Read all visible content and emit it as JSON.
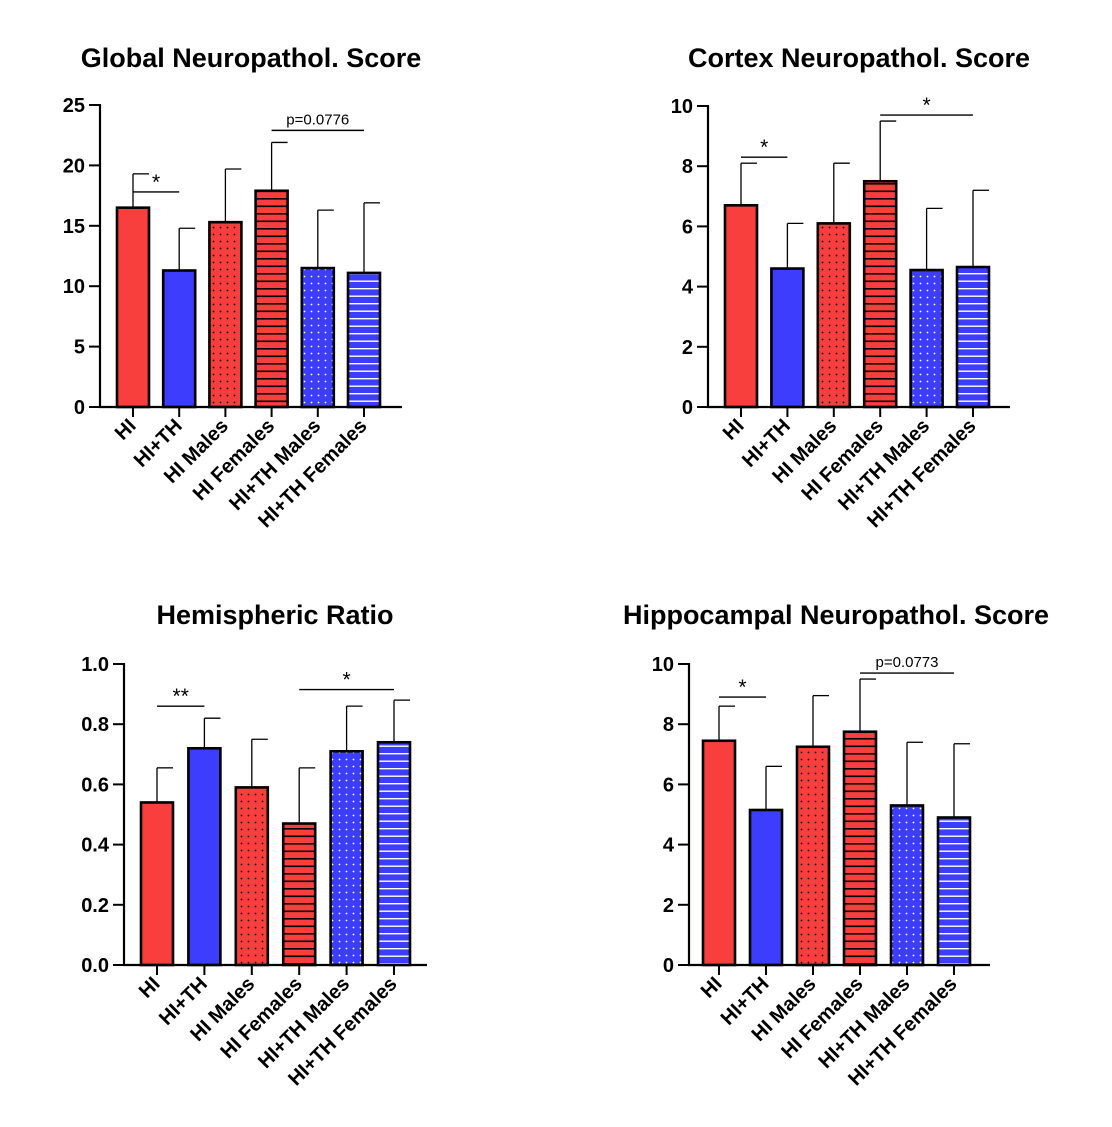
{
  "chart_data": [
    {
      "type": "bar",
      "title": "Global Neuropathol. Score",
      "categories": [
        "HI",
        "HI+TH",
        "HI Males",
        "HI Females",
        "HI+TH Males",
        "HI+TH Females"
      ],
      "values": [
        16.5,
        11.3,
        15.3,
        17.9,
        11.5,
        11.1
      ],
      "error_upper": [
        19.3,
        14.8,
        19.7,
        21.9,
        16.3,
        16.9
      ],
      "patterns": [
        "solid",
        "solid",
        "dots",
        "hlines",
        "dots",
        "hlines"
      ],
      "ylim": [
        0,
        25
      ],
      "yticks": [
        0,
        5,
        10,
        15,
        20,
        25
      ],
      "ytick_labels": [
        "0",
        "5",
        "10",
        "15",
        "20",
        "25"
      ],
      "grid": false,
      "annotations": [
        {
          "from": 0,
          "to": 1,
          "y": 17.8,
          "label": "*"
        },
        {
          "from": 3,
          "to": 5,
          "y": 22.9,
          "label": "p=0.0776"
        }
      ]
    },
    {
      "type": "bar",
      "title": "Cortex Neuropathol. Score",
      "categories": [
        "HI",
        "HI+TH",
        "HI Males",
        "HI Females",
        "HI+TH Males",
        "HI+TH Females"
      ],
      "values": [
        6.7,
        4.6,
        6.1,
        7.5,
        4.55,
        4.65
      ],
      "error_upper": [
        8.1,
        6.1,
        8.1,
        9.5,
        6.6,
        7.2
      ],
      "patterns": [
        "solid",
        "solid",
        "dots",
        "hlines",
        "dots",
        "hlines"
      ],
      "ylim": [
        0,
        10
      ],
      "yticks": [
        0,
        2,
        4,
        6,
        8,
        10
      ],
      "ytick_labels": [
        "0",
        "2",
        "4",
        "6",
        "8",
        "10"
      ],
      "grid": false,
      "annotations": [
        {
          "from": 0,
          "to": 1,
          "y": 8.3,
          "label": "*"
        },
        {
          "from": 3,
          "to": 5,
          "y": 9.7,
          "label": "*"
        }
      ]
    },
    {
      "type": "bar",
      "title": "Hemispheric Ratio",
      "categories": [
        "HI",
        "HI+TH",
        "HI Males",
        "HI Females",
        "HI+TH Males",
        "HI+TH Females"
      ],
      "values": [
        0.54,
        0.72,
        0.59,
        0.47,
        0.71,
        0.74
      ],
      "error_upper": [
        0.655,
        0.82,
        0.75,
        0.655,
        0.86,
        0.88
      ],
      "patterns": [
        "solid",
        "solid",
        "dots",
        "hlines",
        "dots",
        "hlines"
      ],
      "ylim": [
        0,
        1.0
      ],
      "yticks": [
        0,
        0.2,
        0.4,
        0.6,
        0.8,
        1.0
      ],
      "ytick_labels": [
        "0.0",
        "0.2",
        "0.4",
        "0.6",
        "0.8",
        "1.0"
      ],
      "grid": false,
      "annotations": [
        {
          "from": 0,
          "to": 1,
          "y": 0.86,
          "label": "**"
        },
        {
          "from": 3,
          "to": 5,
          "y": 0.915,
          "label": "*"
        }
      ]
    },
    {
      "type": "bar",
      "title": "Hippocampal Neuropathol. Score",
      "categories": [
        "HI",
        "HI+TH",
        "HI Males",
        "HI Females",
        "HI+TH Males",
        "HI+TH Females"
      ],
      "values": [
        7.45,
        5.15,
        7.25,
        7.75,
        5.3,
        4.9
      ],
      "error_upper": [
        8.6,
        6.6,
        8.95,
        9.5,
        7.4,
        7.35
      ],
      "patterns": [
        "solid",
        "solid",
        "dots",
        "hlines",
        "dots",
        "hlines"
      ],
      "ylim": [
        0,
        10
      ],
      "yticks": [
        0,
        2,
        4,
        6,
        8,
        10
      ],
      "ytick_labels": [
        "0",
        "2",
        "4",
        "6",
        "8",
        "10"
      ],
      "grid": false,
      "annotations": [
        {
          "from": 0,
          "to": 1,
          "y": 8.9,
          "label": "*"
        },
        {
          "from": 3,
          "to": 5,
          "y": 9.7,
          "label": "p=0.0773"
        }
      ]
    }
  ],
  "colors": {
    "hi": "#f93e3e",
    "hi_th": "#3d3dfe",
    "axis": "#000000"
  }
}
